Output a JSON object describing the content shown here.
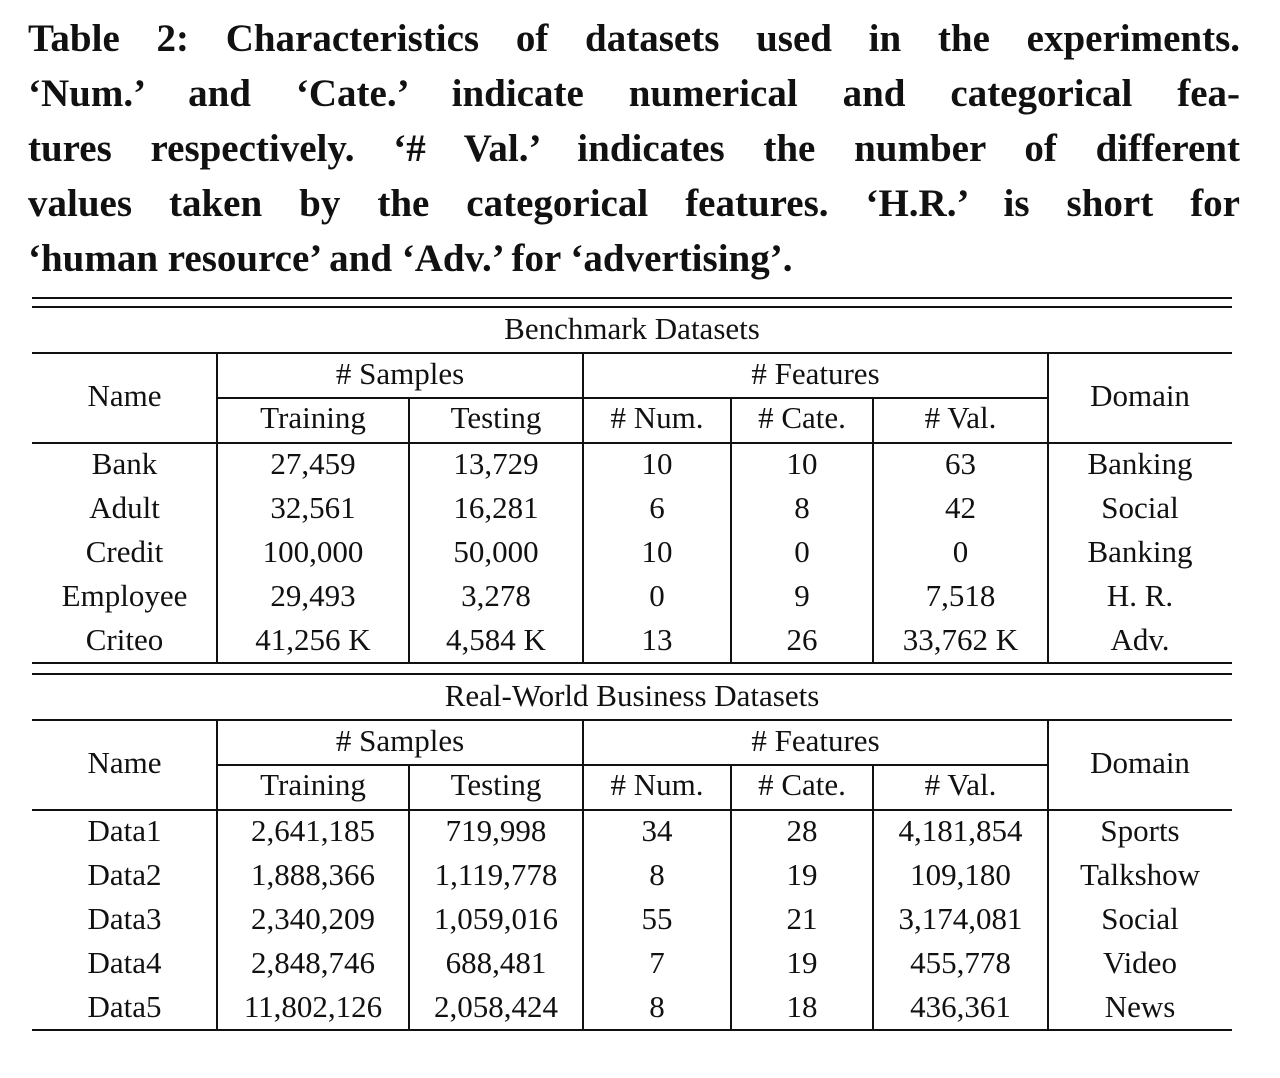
{
  "caption_lines": [
    "Table 2: Characteristics of datasets used in the experiments.",
    "‘Num.’ and ‘Cate.’ indicate numerical and categorical fea-",
    "tures respectively. ‘# Val.’ indicates the number of different",
    "values taken by the categorical features. ‘H.R.’ is short for",
    "‘human resource’ and ‘Adv.’ for ‘advertising’."
  ],
  "headers": {
    "name": "Name",
    "samples": "# Samples",
    "features": "# Features",
    "domain": "Domain",
    "training": "Training",
    "testing": "Testing",
    "num": "# Num.",
    "cate": "# Cate.",
    "val": "# Val."
  },
  "sections": [
    {
      "title": "Benchmark Datasets",
      "rows": [
        [
          "Bank",
          "27,459",
          "13,729",
          "10",
          "10",
          "63",
          "Banking"
        ],
        [
          "Adult",
          "32,561",
          "16,281",
          "6",
          "8",
          "42",
          "Social"
        ],
        [
          "Credit",
          "100,000",
          "50,000",
          "10",
          "0",
          "0",
          "Banking"
        ],
        [
          "Employee",
          "29,493",
          "3,278",
          "0",
          "9",
          "7,518",
          "H. R."
        ],
        [
          "Criteo",
          "41,256 K",
          "4,584 K",
          "13",
          "26",
          "33,762 K",
          "Adv."
        ]
      ]
    },
    {
      "title": "Real-World Business Datasets",
      "rows": [
        [
          "Data1",
          "2,641,185",
          "719,998",
          "34",
          "28",
          "4,181,854",
          "Sports"
        ],
        [
          "Data2",
          "1,888,366",
          "1,119,778",
          "8",
          "19",
          "109,180",
          "Talkshow"
        ],
        [
          "Data3",
          "2,340,209",
          "1,059,016",
          "55",
          "21",
          "3,174,081",
          "Social"
        ],
        [
          "Data4",
          "2,848,746",
          "688,481",
          "7",
          "19",
          "455,778",
          "Video"
        ],
        [
          "Data5",
          "11,802,126",
          "2,058,424",
          "8",
          "18",
          "436,361",
          "News"
        ]
      ]
    }
  ]
}
